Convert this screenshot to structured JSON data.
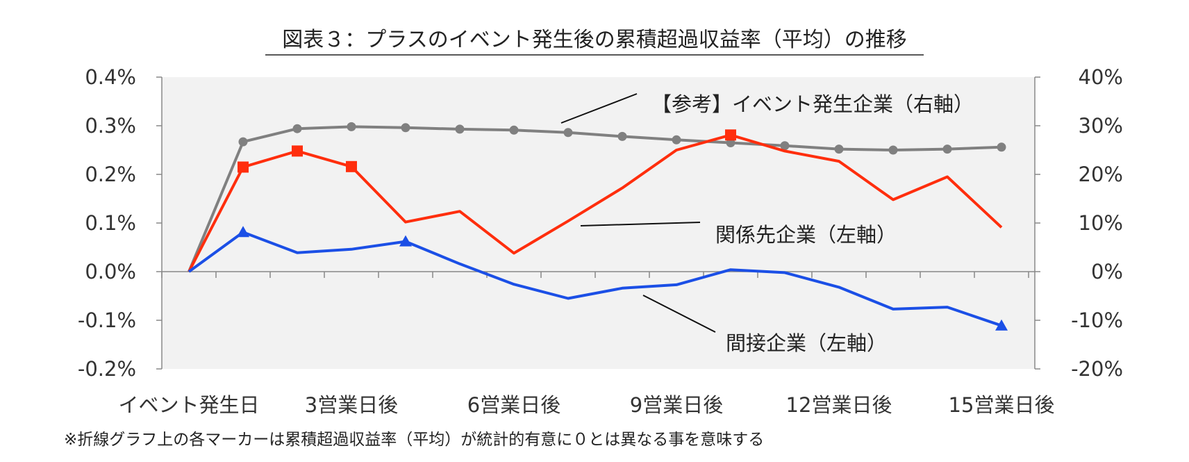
{
  "chart_data": {
    "type": "line",
    "title": "図表３：プラスのイベント発生後の累積超過収益率（平均）の推移",
    "footnote": "※折線グラフ上の各マーカーは累積超過収益率（平均）が統計的有意に０とは異なる事を意味する",
    "x": [
      0,
      1,
      2,
      3,
      4,
      5,
      6,
      7,
      8,
      9,
      10,
      11,
      12,
      13,
      14,
      15
    ],
    "x_tick_labels": [
      {
        "x": 0,
        "label": "イベント発生日"
      },
      {
        "x": 3,
        "label": "3営業日後"
      },
      {
        "x": 6,
        "label": "6営業日後"
      },
      {
        "x": 9,
        "label": "9営業日後"
      },
      {
        "x": 12,
        "label": "12営業日後"
      },
      {
        "x": 15,
        "label": "15営業日後"
      }
    ],
    "y_left": {
      "ylim": [
        -0.2,
        0.4
      ],
      "ticks": [
        0.4,
        0.3,
        0.2,
        0.1,
        0.0,
        -0.1,
        -0.2
      ],
      "tick_labels": [
        "0.4%",
        "0.3%",
        "0.2%",
        "0.1%",
        "0.0%",
        "-0.1%",
        "-0.2%"
      ]
    },
    "y_right": {
      "ylim": [
        -20,
        40
      ],
      "ticks": [
        40,
        30,
        20,
        10,
        0,
        -10,
        -20
      ],
      "tick_labels": [
        "40%",
        "30%",
        "20%",
        "10%",
        "0%",
        "-10%",
        "-20%"
      ]
    },
    "grid": false,
    "series": [
      {
        "name": "【参考】イベント発生企業（右軸）",
        "axis": "right",
        "color": "#808080",
        "marker": "circle",
        "values": [
          0,
          26.7,
          29.4,
          29.8,
          29.6,
          29.3,
          29.1,
          28.6,
          27.8,
          27.1,
          26.5,
          25.9,
          25.2,
          25.0,
          25.2,
          25.6
        ],
        "significant": [
          false,
          true,
          true,
          true,
          true,
          true,
          true,
          true,
          true,
          true,
          true,
          true,
          true,
          true,
          true,
          true
        ]
      },
      {
        "name": "関係先企業（左軸）",
        "axis": "left",
        "color": "#ff2e0d",
        "marker": "square",
        "values": [
          0.0,
          0.215,
          0.248,
          0.216,
          0.102,
          0.124,
          0.038,
          0.104,
          0.172,
          0.25,
          0.281,
          0.248,
          0.227,
          0.148,
          0.195,
          0.091
        ],
        "significant": [
          false,
          true,
          true,
          true,
          false,
          false,
          false,
          false,
          false,
          false,
          true,
          false,
          false,
          false,
          false,
          false
        ]
      },
      {
        "name": "間接企業（左軸）",
        "axis": "left",
        "color": "#1b4fe6",
        "marker": "triangle",
        "values": [
          0.0,
          0.081,
          0.039,
          0.046,
          0.062,
          0.016,
          -0.026,
          -0.055,
          -0.034,
          -0.027,
          0.004,
          -0.002,
          -0.032,
          -0.077,
          -0.073,
          -0.111
        ],
        "significant": [
          false,
          true,
          false,
          false,
          true,
          false,
          false,
          false,
          false,
          false,
          false,
          false,
          false,
          false,
          false,
          true
        ]
      }
    ]
  }
}
